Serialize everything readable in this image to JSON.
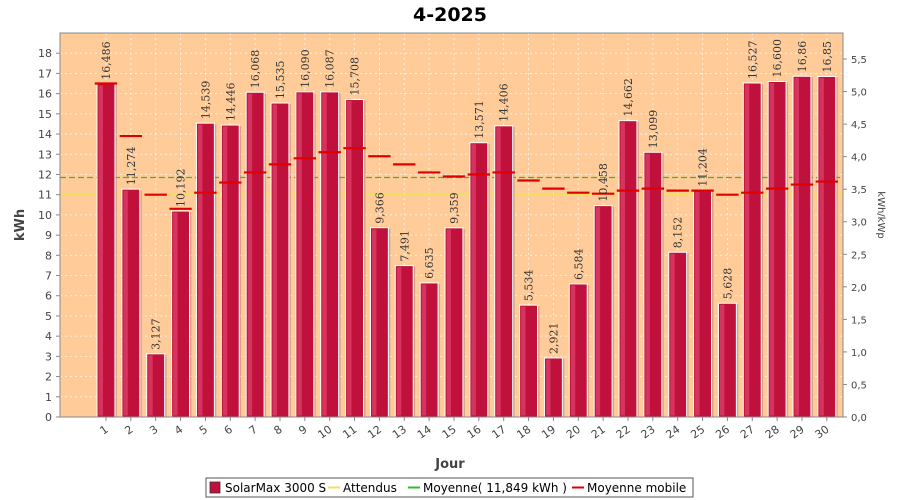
{
  "chart_data": {
    "type": "bar",
    "title": "4-2025",
    "xlabel": "Jour",
    "ylabel": "kWh",
    "ylabel_right": "kWh/kWp",
    "categories": [
      "1",
      "2",
      "3",
      "4",
      "5",
      "6",
      "7",
      "8",
      "9",
      "10",
      "11",
      "12",
      "13",
      "14",
      "15",
      "16",
      "17",
      "18",
      "19",
      "20",
      "21",
      "22",
      "23",
      "24",
      "25",
      "26",
      "27",
      "28",
      "29",
      "30"
    ],
    "value_labels": [
      "16,486",
      "11,274",
      "3,127",
      "10,192",
      "14,539",
      "14,446",
      "16,068",
      "15,535",
      "16,090",
      "16,087",
      "15,708",
      "9,366",
      "7,491",
      "6,635",
      "9,359",
      "13,571",
      "14,406",
      "5,534",
      "2,921",
      "6,584",
      "10,458",
      "14,662",
      "13,099",
      "8,152",
      "11,204",
      "5,628",
      "16,527",
      "16,600",
      "16,86",
      "16,85"
    ],
    "series": [
      {
        "name": "SolarMax 3000 S",
        "type": "bar",
        "color": "#c0103c",
        "values": [
          16.486,
          11.274,
          3.127,
          10.192,
          14.539,
          14.446,
          16.068,
          15.535,
          16.09,
          16.087,
          15.708,
          9.366,
          7.491,
          6.635,
          9.359,
          13.571,
          14.406,
          5.534,
          2.921,
          6.584,
          10.458,
          14.662,
          13.099,
          8.152,
          11.204,
          5.628,
          16.527,
          16.6,
          16.86,
          16.85
        ]
      },
      {
        "name": "Attendus",
        "type": "line",
        "color": "#f0e060",
        "values": [
          11.0,
          11.0,
          11.0,
          11.0,
          11.0,
          11.0,
          11.0,
          11.0,
          11.0,
          11.0,
          11.0,
          11.0,
          11.0,
          11.0,
          11.0,
          11.0,
          11.0,
          11.0,
          11.0,
          11.0,
          11.0,
          11.0,
          11.0,
          11.0,
          11.0,
          11.0,
          11.0,
          11.0,
          11.0,
          11.0
        ]
      },
      {
        "name": "Moyenne( 11,849 kWh )",
        "type": "line",
        "color": "#33bb33",
        "values": [
          11.849,
          11.849,
          11.849,
          11.849,
          11.849,
          11.849,
          11.849,
          11.849,
          11.849,
          11.849,
          11.849,
          11.849,
          11.849,
          11.849,
          11.849,
          11.849,
          11.849,
          11.849,
          11.849,
          11.849,
          11.849,
          11.849,
          11.849,
          11.849,
          11.849,
          11.849,
          11.849,
          11.849,
          11.849,
          11.849
        ]
      },
      {
        "name": "Moyenne mobile",
        "type": "step",
        "color": "#e00000",
        "values": [
          16.5,
          13.9,
          11.0,
          10.3,
          11.1,
          11.6,
          12.1,
          12.5,
          12.8,
          13.1,
          13.3,
          12.9,
          12.5,
          12.1,
          11.9,
          12.0,
          12.1,
          11.7,
          11.3,
          11.1,
          11.05,
          11.2,
          11.3,
          11.2,
          11.2,
          11.0,
          11.1,
          11.3,
          11.5,
          11.65
        ]
      }
    ],
    "ylim": [
      0,
      19
    ],
    "yticks": [
      0,
      1,
      2,
      3,
      4,
      5,
      6,
      7,
      8,
      9,
      10,
      11,
      12,
      13,
      14,
      15,
      16,
      17,
      18
    ],
    "ylim_right": [
      0,
      5.9
    ],
    "yticks_right": [
      "0,0",
      "0,5",
      "1,0",
      "1,5",
      "2,0",
      "2,5",
      "3,0",
      "3,5",
      "4,0",
      "4,5",
      "5,0",
      "5,5"
    ],
    "yticks_right_values": [
      0,
      0.5,
      1.0,
      1.5,
      2.0,
      2.5,
      3.0,
      3.5,
      4.0,
      4.5,
      5.0,
      5.5
    ],
    "plot_background": "#ffcc99",
    "grid": true,
    "legend_position": "bottom"
  }
}
